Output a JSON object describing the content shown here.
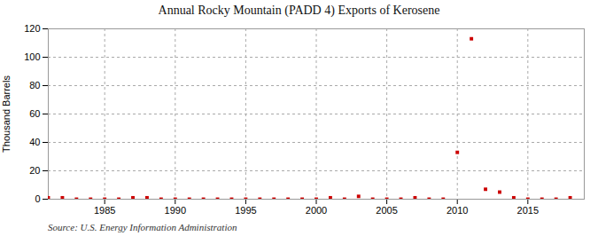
{
  "chart_data": {
    "type": "scatter",
    "title": "Annual Rocky Mountain (PADD 4) Exports of Kerosene",
    "ylabel": "Thousand Barrels",
    "annotation": "Source: U.S. Energy Information Administration",
    "x": [
      1981,
      1982,
      1983,
      1984,
      1985,
      1986,
      1987,
      1988,
      1989,
      1990,
      1991,
      1992,
      1993,
      1994,
      1995,
      1996,
      1997,
      1998,
      1999,
      2000,
      2001,
      2002,
      2003,
      2004,
      2005,
      2006,
      2007,
      2008,
      2009,
      2010,
      2011,
      2012,
      2013,
      2014,
      2015,
      2016,
      2017,
      2018
    ],
    "values": [
      1,
      1,
      0,
      0,
      0,
      0,
      1,
      1,
      0,
      0,
      0,
      0,
      0,
      0,
      0,
      0,
      0,
      0,
      0,
      0,
      1,
      0,
      2,
      0,
      0,
      0,
      1,
      0,
      0,
      33,
      113,
      7,
      5,
      1,
      0,
      0,
      0,
      1
    ],
    "color": "#cc0000",
    "marker": "square",
    "xlim": [
      1981,
      2019
    ],
    "ylim": [
      0,
      120
    ],
    "xticks": [
      1985,
      1990,
      1995,
      2000,
      2005,
      2010,
      2015
    ],
    "yticks": [
      0,
      20,
      40,
      60,
      80,
      100,
      120
    ],
    "grid": true
  }
}
